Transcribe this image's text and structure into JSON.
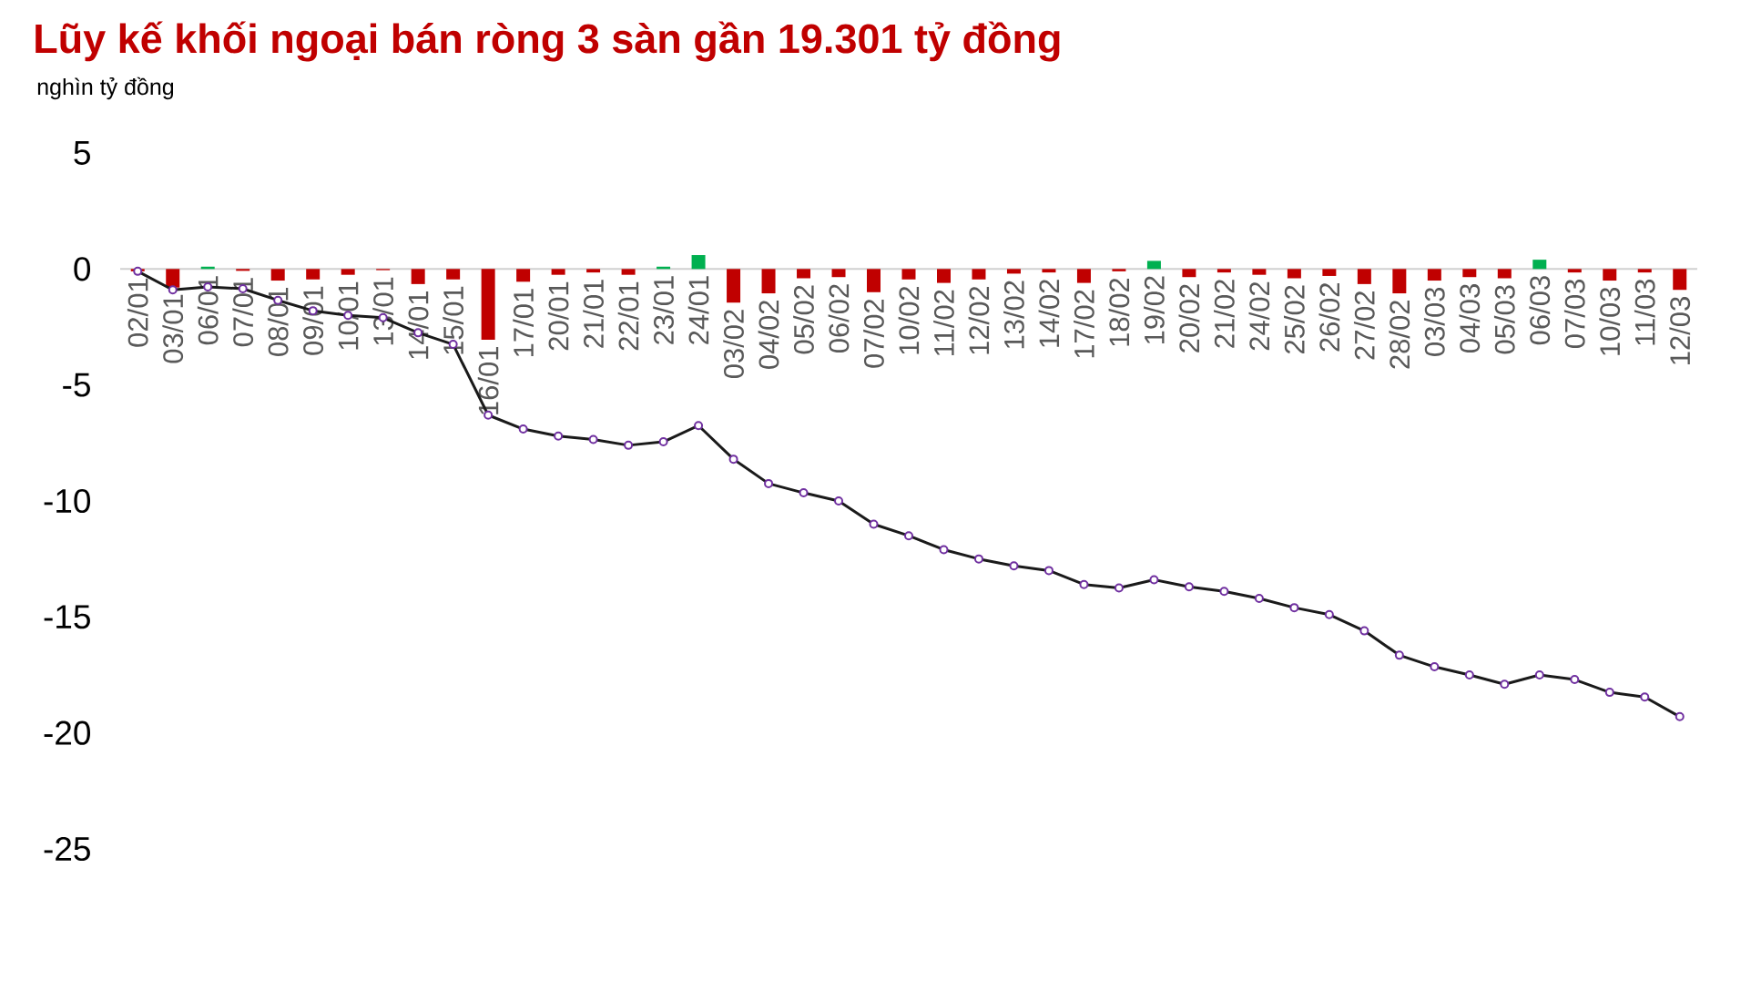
{
  "chart_data": {
    "type": "bar",
    "title": "Lũy kế khối ngoại bán ròng 3 sàn gần 19.301 tỷ đồng",
    "subtitle": "nghìn tỷ đồng",
    "categories": [
      "02/01",
      "03/01",
      "06/01",
      "07/01",
      "08/01",
      "09/01",
      "10/01",
      "13/01",
      "14/01",
      "15/01",
      "16/01",
      "17/01",
      "20/01",
      "21/01",
      "22/01",
      "23/01",
      "24/01",
      "03/02",
      "04/02",
      "05/02",
      "06/02",
      "07/02",
      "10/02",
      "11/02",
      "12/02",
      "13/02",
      "14/02",
      "17/02",
      "18/02",
      "19/02",
      "20/02",
      "21/02",
      "24/02",
      "25/02",
      "26/02",
      "27/02",
      "28/02",
      "03/03",
      "04/03",
      "05/03",
      "06/03",
      "07/03",
      "10/03",
      "11/03",
      "12/03"
    ],
    "ylim": [
      -25,
      5
    ],
    "yticks": [
      -25,
      -20,
      -15,
      -10,
      -5,
      0,
      5
    ],
    "series": [
      {
        "values": [
          -0.1,
          -0.8,
          0.1,
          -0.08,
          -0.5,
          -0.45,
          -0.25,
          -0.05,
          -0.65,
          -0.45,
          -3.05,
          -0.55,
          -0.25,
          -0.15,
          -0.25,
          0.1,
          0.6,
          -1.45,
          -1.05,
          -0.4,
          -0.35,
          -1.0,
          -0.45,
          -0.6,
          -0.45,
          -0.2,
          -0.15,
          -0.6,
          -0.1,
          0.35,
          -0.35,
          -0.15,
          -0.25,
          -0.4,
          -0.3,
          -0.65,
          -1.05,
          -0.5,
          -0.35,
          -0.4,
          0.4,
          -0.15,
          -0.5,
          -0.15,
          -0.9
        ],
        "colors": [
          "#c00000",
          "#c00000",
          "#00b050",
          "#c00000",
          "#c00000",
          "#c00000",
          "#c00000",
          "#c00000",
          "#c00000",
          "#c00000",
          "#c00000",
          "#c00000",
          "#c00000",
          "#c00000",
          "#c00000",
          "#00b050",
          "#00b050",
          "#c00000",
          "#c00000",
          "#c00000",
          "#c00000",
          "#c00000",
          "#c00000",
          "#c00000",
          "#c00000",
          "#c00000",
          "#c00000",
          "#c00000",
          "#c00000",
          "#00b050",
          "#c00000",
          "#c00000",
          "#c00000",
          "#c00000",
          "#c00000",
          "#c00000",
          "#c00000",
          "#c00000",
          "#c00000",
          "#c00000",
          "#00b050",
          "#c00000",
          "#c00000",
          "#c00000",
          "#c00000"
        ]
      },
      {
        "type": "line",
        "color": "#1a1a1a",
        "marker": "circle",
        "values": [
          -0.1,
          -0.9,
          -0.77,
          -0.85,
          -1.35,
          -1.8,
          -2.0,
          -2.1,
          -2.75,
          -3.25,
          -6.3,
          -6.9,
          -7.2,
          -7.35,
          -7.6,
          -7.45,
          -6.75,
          -8.2,
          -9.25,
          -9.65,
          -10.0,
          -11.0,
          -11.5,
          -12.1,
          -12.5,
          -12.8,
          -13.0,
          -13.6,
          -13.75,
          -13.4,
          -13.7,
          -13.9,
          -14.2,
          -14.6,
          -14.9,
          -15.6,
          -16.65,
          -17.15,
          -17.5,
          -17.9,
          -17.5,
          -17.7,
          -18.25,
          -18.45,
          -19.3
        ],
        "colors": [
          "#7030a0",
          "#7030a0",
          "#7030a0",
          "#7030a0",
          "#7030a0",
          "#7030a0",
          "#7030a0",
          "#7030a0",
          "#7030a0",
          "#7030a0",
          "#7030a0",
          "#7030a0",
          "#7030a0",
          "#7030a0",
          "#7030a0",
          "#7030a0",
          "#7030a0",
          "#7030a0",
          "#7030a0",
          "#7030a0",
          "#7030a0",
          "#7030a0",
          "#7030a0",
          "#7030a0",
          "#7030a0",
          "#7030a0",
          "#7030a0",
          "#7030a0",
          "#7030a0",
          "#7030a0",
          "#7030a0",
          "#7030a0",
          "#7030a0",
          "#7030a0",
          "#7030a0",
          "#7030a0",
          "#7030a0",
          "#7030a0",
          "#7030a0",
          "#7030a0",
          "#7030a0",
          "#7030a0",
          "#7030a0",
          "#7030a0",
          "#7030a0"
        ]
      }
    ]
  }
}
